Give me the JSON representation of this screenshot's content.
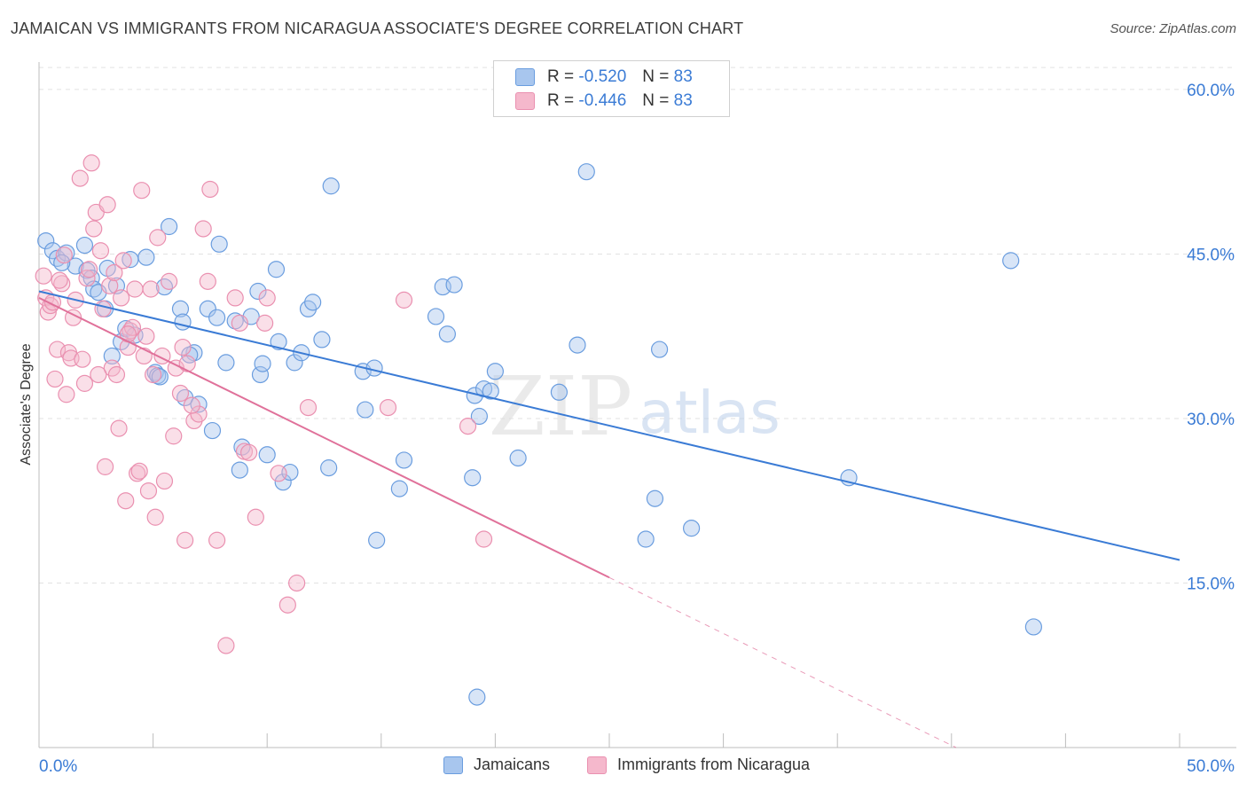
{
  "header": {
    "title": "JAMAICAN VS IMMIGRANTS FROM NICARAGUA ASSOCIATE'S DEGREE CORRELATION CHART",
    "source": "Source: ZipAtlas.com"
  },
  "watermark": {
    "zip": "ZIP",
    "atlas": "atlas"
  },
  "legend": {
    "rows": [
      {
        "r_label": "R =",
        "r_value": "-0.520",
        "n_label": "N =",
        "n_value": "83"
      },
      {
        "r_label": "R =",
        "r_value": "-0.446",
        "n_label": "N =",
        "n_value": "83"
      }
    ],
    "bottom": [
      "Jamaicans",
      "Immigrants from Nicaragua"
    ]
  },
  "colors": {
    "blue": "#3a7bd5",
    "blue_fill": "#a8c6ee",
    "blue_stroke": "#6a9ddf",
    "pink": "#e0719a",
    "pink_fill": "#f5b8cc",
    "pink_stroke": "#ea90b0",
    "grid": "#e2e2e2",
    "tick_label": "#3a7bd5"
  },
  "chart_data": {
    "type": "scatter",
    "title": "JAMAICAN VS IMMIGRANTS FROM NICARAGUA ASSOCIATE'S DEGREE CORRELATION CHART",
    "xlabel": "",
    "ylabel": "Associate's Degree",
    "xlim": [
      0,
      50
    ],
    "ylim": [
      0,
      62.5
    ],
    "x_tick_labels": [
      "0.0%",
      "50.0%"
    ],
    "y_ticks": [
      15,
      30,
      45,
      60
    ],
    "y_tick_labels": [
      "15.0%",
      "30.0%",
      "45.0%",
      "60.0%"
    ],
    "legend_position": "top-center",
    "series": [
      {
        "name": "Jamaicans",
        "r": -0.52,
        "n": 83,
        "trend": {
          "x": [
            0,
            50
          ],
          "y": [
            41.6,
            17.1
          ],
          "dashed_from": null
        },
        "points": [
          [
            0.3,
            46.2
          ],
          [
            0.6,
            45.3
          ],
          [
            0.8,
            44.6
          ],
          [
            1.2,
            45.1
          ],
          [
            1.6,
            43.9
          ],
          [
            2.0,
            45.8
          ],
          [
            2.1,
            43.5
          ],
          [
            2.3,
            42.8
          ],
          [
            2.4,
            41.8
          ],
          [
            2.9,
            40.0
          ],
          [
            3.0,
            43.7
          ],
          [
            3.4,
            42.1
          ],
          [
            3.6,
            37.0
          ],
          [
            3.8,
            38.2
          ],
          [
            4.0,
            44.5
          ],
          [
            4.2,
            37.6
          ],
          [
            4.7,
            44.7
          ],
          [
            5.1,
            34.2
          ],
          [
            5.2,
            33.9
          ],
          [
            5.5,
            42.0
          ],
          [
            5.7,
            47.5
          ],
          [
            6.2,
            40.0
          ],
          [
            6.3,
            38.8
          ],
          [
            6.4,
            31.9
          ],
          [
            6.8,
            36.0
          ],
          [
            7.0,
            31.3
          ],
          [
            7.4,
            40.0
          ],
          [
            7.6,
            28.9
          ],
          [
            7.8,
            39.2
          ],
          [
            7.9,
            45.9
          ],
          [
            8.2,
            35.1
          ],
          [
            8.6,
            38.9
          ],
          [
            8.8,
            25.3
          ],
          [
            8.9,
            27.4
          ],
          [
            9.3,
            39.3
          ],
          [
            9.6,
            41.6
          ],
          [
            9.7,
            34.0
          ],
          [
            9.8,
            35.0
          ],
          [
            10.0,
            26.7
          ],
          [
            10.4,
            43.6
          ],
          [
            10.5,
            37.0
          ],
          [
            10.7,
            24.2
          ],
          [
            11.0,
            25.1
          ],
          [
            11.2,
            35.1
          ],
          [
            11.5,
            36.0
          ],
          [
            11.8,
            40.0
          ],
          [
            12.0,
            40.6
          ],
          [
            12.4,
            37.2
          ],
          [
            12.7,
            25.5
          ],
          [
            12.8,
            51.2
          ],
          [
            14.2,
            34.3
          ],
          [
            14.3,
            30.8
          ],
          [
            14.7,
            34.6
          ],
          [
            14.8,
            18.9
          ],
          [
            15.8,
            23.6
          ],
          [
            16.0,
            26.2
          ],
          [
            17.4,
            39.3
          ],
          [
            17.7,
            42.0
          ],
          [
            17.9,
            37.7
          ],
          [
            18.2,
            42.2
          ],
          [
            19.0,
            24.6
          ],
          [
            19.1,
            32.1
          ],
          [
            19.3,
            30.2
          ],
          [
            19.5,
            32.7
          ],
          [
            19.8,
            32.5
          ],
          [
            20.0,
            34.3
          ],
          [
            21.0,
            26.4
          ],
          [
            22.8,
            32.4
          ],
          [
            23.6,
            36.7
          ],
          [
            24.0,
            52.5
          ],
          [
            26.6,
            19.0
          ],
          [
            27.0,
            22.7
          ],
          [
            27.2,
            36.3
          ],
          [
            28.6,
            20.0
          ],
          [
            35.5,
            24.6
          ],
          [
            42.6,
            44.4
          ],
          [
            43.6,
            11.0
          ],
          [
            19.2,
            4.6
          ],
          [
            1.0,
            44.2
          ],
          [
            2.6,
            41.5
          ],
          [
            5.3,
            33.8
          ],
          [
            6.6,
            35.8
          ],
          [
            3.2,
            35.7
          ]
        ]
      },
      {
        "name": "Immigrants from Nicaragua",
        "r": -0.446,
        "n": 83,
        "trend": {
          "x": [
            0,
            40.2
          ],
          "y": [
            41.0,
            0
          ],
          "dashed_from": 25.0
        },
        "points": [
          [
            0.2,
            43.0
          ],
          [
            0.3,
            41.0
          ],
          [
            0.4,
            39.7
          ],
          [
            0.5,
            40.3
          ],
          [
            0.6,
            40.6
          ],
          [
            0.7,
            33.6
          ],
          [
            0.8,
            36.3
          ],
          [
            1.0,
            42.3
          ],
          [
            1.2,
            32.2
          ],
          [
            1.3,
            36.0
          ],
          [
            1.4,
            35.5
          ],
          [
            1.5,
            39.2
          ],
          [
            1.6,
            40.8
          ],
          [
            1.8,
            51.9
          ],
          [
            1.9,
            35.4
          ],
          [
            2.0,
            33.2
          ],
          [
            2.1,
            42.8
          ],
          [
            2.2,
            43.6
          ],
          [
            2.3,
            53.3
          ],
          [
            2.4,
            47.3
          ],
          [
            2.5,
            48.8
          ],
          [
            2.7,
            45.3
          ],
          [
            2.8,
            40.0
          ],
          [
            2.9,
            25.6
          ],
          [
            3.0,
            49.5
          ],
          [
            3.1,
            42.1
          ],
          [
            3.2,
            34.6
          ],
          [
            3.3,
            43.3
          ],
          [
            3.4,
            34.0
          ],
          [
            3.5,
            29.1
          ],
          [
            3.6,
            41.0
          ],
          [
            3.7,
            44.4
          ],
          [
            3.8,
            22.5
          ],
          [
            3.9,
            36.5
          ],
          [
            4.0,
            38.0
          ],
          [
            4.1,
            38.3
          ],
          [
            4.2,
            41.8
          ],
          [
            4.3,
            25.0
          ],
          [
            4.4,
            25.2
          ],
          [
            4.5,
            50.8
          ],
          [
            4.6,
            35.7
          ],
          [
            4.7,
            37.5
          ],
          [
            4.8,
            23.4
          ],
          [
            4.9,
            41.8
          ],
          [
            5.0,
            34.0
          ],
          [
            5.1,
            21.0
          ],
          [
            5.2,
            46.5
          ],
          [
            5.4,
            35.7
          ],
          [
            5.5,
            24.3
          ],
          [
            5.7,
            42.5
          ],
          [
            5.9,
            28.4
          ],
          [
            6.0,
            34.6
          ],
          [
            6.2,
            32.3
          ],
          [
            6.3,
            36.5
          ],
          [
            6.4,
            18.9
          ],
          [
            6.5,
            35.0
          ],
          [
            6.8,
            29.8
          ],
          [
            7.0,
            30.4
          ],
          [
            7.2,
            47.3
          ],
          [
            7.4,
            42.5
          ],
          [
            7.5,
            50.9
          ],
          [
            7.8,
            18.9
          ],
          [
            8.2,
            9.3
          ],
          [
            8.6,
            41.0
          ],
          [
            8.8,
            38.7
          ],
          [
            9.0,
            27.0
          ],
          [
            9.2,
            26.9
          ],
          [
            9.5,
            21.0
          ],
          [
            9.9,
            38.7
          ],
          [
            10.0,
            41.0
          ],
          [
            10.5,
            25.0
          ],
          [
            10.9,
            13.0
          ],
          [
            11.3,
            15.0
          ],
          [
            11.8,
            31.0
          ],
          [
            15.3,
            31.0
          ],
          [
            16.0,
            40.8
          ],
          [
            18.8,
            29.3
          ],
          [
            19.5,
            19.0
          ],
          [
            1.1,
            44.9
          ],
          [
            0.9,
            42.6
          ],
          [
            6.7,
            31.2
          ],
          [
            3.9,
            37.7
          ],
          [
            2.6,
            34.0
          ]
        ]
      }
    ]
  }
}
